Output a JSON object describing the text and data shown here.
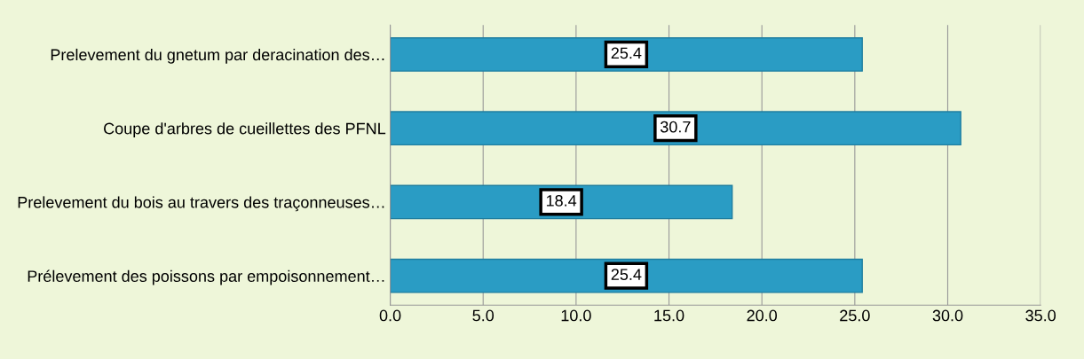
{
  "chart_data": {
    "type": "bar",
    "orientation": "horizontal",
    "categories": [
      "Prelevement du gnetum par deracination des…",
      "Coupe d'arbres de cueillettes des PFNL",
      "Prelevement du bois au travers des traçonneuses…",
      "Prélevement des poissons par empoisonnement…"
    ],
    "values": [
      25.4,
      30.7,
      18.4,
      25.4
    ],
    "color": "#2a9cc4",
    "data_labels": true,
    "xlim": [
      0,
      35
    ],
    "xticks": [
      {
        "value": 0,
        "label": "0.0"
      },
      {
        "value": 5,
        "label": "5.0"
      },
      {
        "value": 10,
        "label": "10.0"
      },
      {
        "value": 15,
        "label": "15.0"
      },
      {
        "value": 20,
        "label": "20.0"
      },
      {
        "value": 25,
        "label": "25.0"
      },
      {
        "value": 30,
        "label": "30.0"
      },
      {
        "value": 35,
        "label": "35.0"
      }
    ],
    "grid": "x"
  }
}
